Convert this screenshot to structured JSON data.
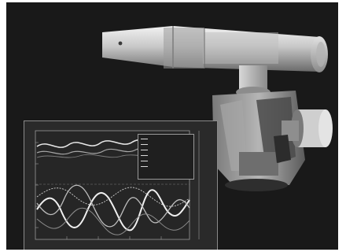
{
  "photo": {
    "subject": "robot-arm-with-overlaid-plot",
    "colors": {
      "background": "#191919",
      "metal_light": "#dcdcdc",
      "metal_mid": "#9e9e9e",
      "metal_dark": "#5a5a5a",
      "plot_bg": "#2a2a2a",
      "trace": "#e6e6e6"
    }
  },
  "plot_window": {
    "legend_title": "",
    "legend_items": [
      "",
      "",
      "",
      "",
      "",
      ""
    ],
    "x_caption": "",
    "y_caption": ""
  }
}
